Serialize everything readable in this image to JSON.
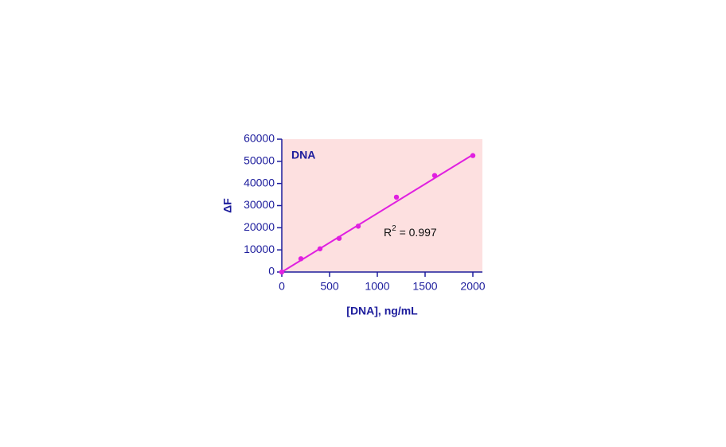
{
  "chart_data": {
    "type": "scatter",
    "title": "DNA",
    "xlabel": "[DNA], ng/mL",
    "ylabel": "ΔF",
    "x": [
      0,
      200,
      400,
      600,
      800,
      1200,
      1600,
      2000
    ],
    "series": [
      {
        "color": "#e020e0",
        "values": [
          0,
          6000,
          10500,
          15200,
          20700,
          33800,
          43600,
          52600
        ]
      }
    ],
    "fit": {
      "x": [
        0,
        2000
      ],
      "values": [
        0,
        53000
      ],
      "color": "#e020e0"
    },
    "annotation": {
      "base": "R",
      "sup": "2",
      "rest": " = 0.997"
    },
    "xlim": [
      0,
      2100
    ],
    "xticks": [
      0,
      500,
      1000,
      1500,
      2000
    ],
    "ylim": [
      0,
      60000
    ],
    "yticks": [
      0,
      10000,
      20000,
      30000,
      40000,
      50000,
      60000
    ],
    "background": "#fde0e0",
    "axis_color": "#1c1c9c"
  }
}
